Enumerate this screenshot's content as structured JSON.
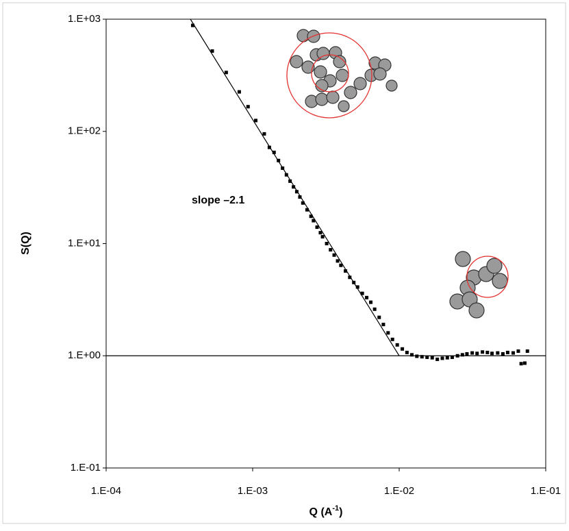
{
  "chart_data": {
    "type": "scatter",
    "xlabel": [
      "Q (A",
      "-1",
      ")"
    ],
    "ylabel": "S(Q)",
    "annotation": "slope –2.1",
    "xscale": "log",
    "yscale": "log",
    "xlim": [
      0.0001,
      0.1
    ],
    "ylim": [
      0.1,
      1000
    ],
    "xticks": [
      {
        "value": 0.0001,
        "label": "1.E-04"
      },
      {
        "value": 0.001,
        "label": "1.E-03"
      },
      {
        "value": 0.01,
        "label": "1.E-02"
      },
      {
        "value": 0.1,
        "label": "1.E-01"
      }
    ],
    "yticks": [
      {
        "value": 0.1,
        "label": "1.E-01"
      },
      {
        "value": 1,
        "label": "1.E+00"
      },
      {
        "value": 10,
        "label": "1.E+01"
      },
      {
        "value": 100,
        "label": "1.E+02"
      },
      {
        "value": 1000,
        "label": "1.E+03"
      }
    ],
    "series": [
      {
        "mode": "markers",
        "color": "#000000",
        "x": [
          0.00039,
          0.00053,
          0.00066,
          0.00081,
          0.00093,
          0.00105,
          0.0012,
          0.0013,
          0.0014,
          0.0015,
          0.0016,
          0.0017,
          0.0018,
          0.0019,
          0.002,
          0.0021,
          0.0022,
          0.00235,
          0.0025,
          0.0026,
          0.00275,
          0.0029,
          0.003,
          0.0032,
          0.0034,
          0.0036,
          0.0038,
          0.004,
          0.0043,
          0.0046,
          0.0049,
          0.0052,
          0.0056,
          0.006,
          0.0064,
          0.0068,
          0.0073,
          0.0078,
          0.0084,
          0.009,
          0.0097,
          0.0105,
          0.0113,
          0.0122,
          0.0132,
          0.0143,
          0.0155,
          0.0168,
          0.0182,
          0.0197,
          0.0213,
          0.023,
          0.025,
          0.027,
          0.029,
          0.0315,
          0.034,
          0.037,
          0.04,
          0.043,
          0.047,
          0.051,
          0.055,
          0.06,
          0.065,
          0.068,
          0.072,
          0.075
        ],
        "values": [
          880,
          520,
          335,
          225,
          166,
          125,
          95,
          72,
          65,
          55,
          47,
          41,
          36,
          32,
          29,
          26,
          23,
          20,
          17.5,
          16,
          14,
          12.5,
          11.5,
          10,
          8.8,
          7.9,
          7.0,
          6.4,
          5.7,
          5.0,
          4.5,
          4.1,
          3.6,
          3.3,
          3.0,
          2.6,
          2.2,
          1.9,
          1.6,
          1.4,
          1.25,
          1.15,
          1.07,
          1.02,
          0.99,
          0.98,
          0.97,
          0.96,
          0.93,
          0.95,
          0.96,
          0.97,
          1.0,
          1.02,
          1.04,
          1.06,
          1.05,
          1.08,
          1.07,
          1.05,
          1.06,
          1.04,
          1.07,
          1.06,
          1.1,
          0.85,
          0.86,
          1.1
        ]
      },
      {
        "mode": "line",
        "color": "#000000",
        "x": [
          0.000376,
          0.01
        ],
        "values": [
          1000,
          1
        ]
      },
      {
        "mode": "line",
        "color": "#000000",
        "x": [
          0.0001,
          0.1
        ],
        "values": [
          1,
          1
        ]
      }
    ]
  }
}
